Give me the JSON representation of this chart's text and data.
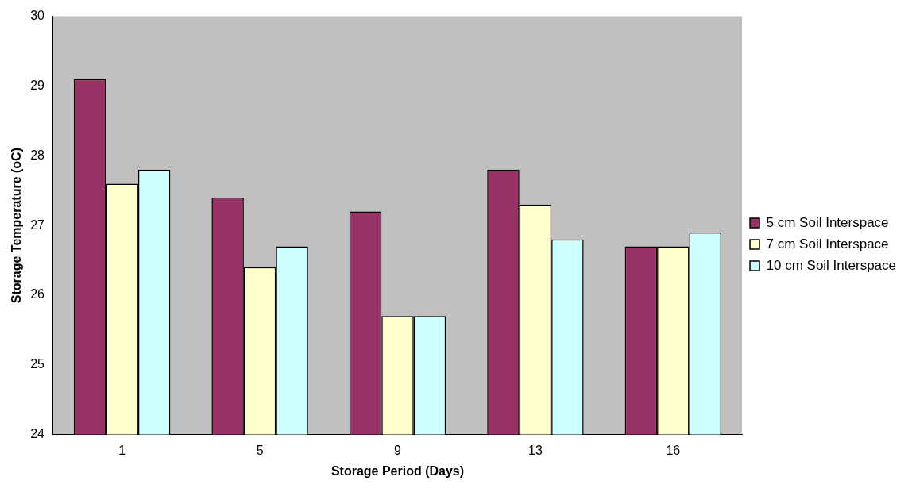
{
  "chart_data": {
    "type": "bar",
    "xlabel": "Storage Period (Days)",
    "ylabel": "Storage Temperature (oC)",
    "categories": [
      "1",
      "5",
      "9",
      "13",
      "16"
    ],
    "series": [
      {
        "name": "5 cm Soil Interspace",
        "color": "#993366",
        "values": [
          29.1,
          27.4,
          27.2,
          27.8,
          26.7
        ]
      },
      {
        "name": "7 cm Soil Interspace",
        "color": "#ffffcc",
        "values": [
          27.6,
          26.4,
          25.7,
          27.3,
          26.7
        ]
      },
      {
        "name": "10 cm Soil Interspace",
        "color": "#ccffff",
        "values": [
          27.8,
          26.7,
          25.7,
          26.8,
          26.9
        ]
      }
    ],
    "ylim": [
      24,
      30
    ],
    "yticks": [
      24,
      25,
      26,
      27,
      28,
      29,
      30
    ],
    "grid": false,
    "legend": "right"
  }
}
